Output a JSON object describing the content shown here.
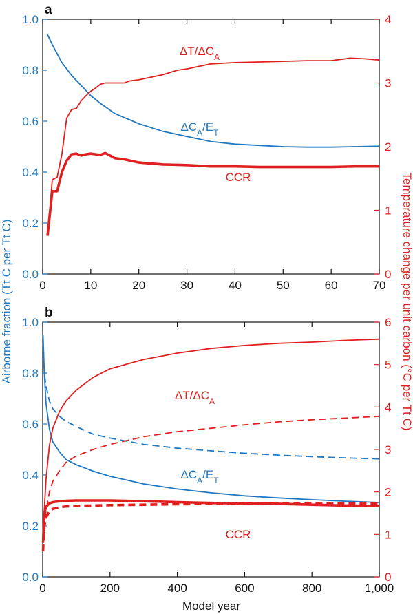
{
  "colors": {
    "blue": "#1f78c1",
    "red": "#e02020",
    "axis": "#111111"
  },
  "y_left_label": "Airborne fraction (Tt C per Tt C)",
  "y_right_label": "Temperature change per unit carbon (°C per Tt C)",
  "x_label": "Model year",
  "chart_data": [
    {
      "panel": "a",
      "type": "line",
      "xlim": [
        0,
        70
      ],
      "x_ticks": [
        "0",
        "10",
        "20",
        "30",
        "40",
        "50",
        "60",
        "70"
      ],
      "ylim_left": [
        0,
        1
      ],
      "y_left_ticks": [
        "0.0",
        "0.2",
        "0.4",
        "0.6",
        "0.8",
        "1.0"
      ],
      "ylim_right": [
        0,
        4
      ],
      "y_right_ticks": [
        "0",
        "1",
        "2",
        "3",
        "4"
      ],
      "labels": [
        {
          "series": "dT_dCA",
          "pre": "ΔT/ΔC",
          "sub": "A",
          "post": "",
          "color": "red"
        },
        {
          "series": "dCA_ET",
          "pre": "ΔC",
          "sub": "A",
          "post": "/E",
          "sub2": "T",
          "color": "blue"
        },
        {
          "series": "CCR",
          "pre": "CCR",
          "color": "red"
        }
      ],
      "series": [
        {
          "id": "dCA_ET",
          "axis": "left",
          "color": "blue",
          "style": "solid",
          "width": "thin",
          "x": [
            1,
            2,
            4,
            6,
            8,
            10,
            12,
            15,
            20,
            25,
            30,
            35,
            40,
            45,
            50,
            55,
            60,
            65,
            70
          ],
          "y": [
            0.94,
            0.9,
            0.83,
            0.78,
            0.74,
            0.7,
            0.67,
            0.63,
            0.59,
            0.56,
            0.54,
            0.52,
            0.51,
            0.505,
            0.5,
            0.498,
            0.498,
            0.5,
            0.502
          ]
        },
        {
          "id": "dT_dCA",
          "axis": "right",
          "color": "red",
          "style": "solid",
          "width": "thin",
          "x": [
            1,
            2,
            3,
            4,
            5,
            6,
            7,
            8,
            9,
            10,
            11,
            12,
            13,
            15,
            17,
            18,
            20,
            25,
            28,
            30,
            35,
            40,
            45,
            50,
            55,
            60,
            64,
            67,
            70
          ],
          "y": [
            0.6,
            1.48,
            1.52,
            1.88,
            2.45,
            2.58,
            2.6,
            2.72,
            2.8,
            2.87,
            2.92,
            2.98,
            3.0,
            3.0,
            3.0,
            3.03,
            3.05,
            3.13,
            3.2,
            3.22,
            3.3,
            3.32,
            3.33,
            3.34,
            3.35,
            3.35,
            3.39,
            3.38,
            3.36
          ]
        },
        {
          "id": "CCR",
          "axis": "right",
          "color": "red",
          "style": "solid",
          "width": "thick",
          "x": [
            1,
            2,
            3,
            4,
            5,
            6,
            7,
            8,
            9,
            10,
            11,
            12,
            13,
            14,
            15,
            17,
            20,
            25,
            30,
            35,
            40,
            45,
            50,
            55,
            60,
            65,
            70
          ],
          "y": [
            0.6,
            1.3,
            1.3,
            1.6,
            1.78,
            1.88,
            1.89,
            1.86,
            1.88,
            1.89,
            1.88,
            1.87,
            1.9,
            1.86,
            1.82,
            1.8,
            1.75,
            1.72,
            1.71,
            1.69,
            1.69,
            1.68,
            1.68,
            1.68,
            1.68,
            1.69,
            1.69
          ]
        }
      ]
    },
    {
      "panel": "b",
      "type": "line",
      "xlim": [
        0,
        1000
      ],
      "x_ticks": [
        "0",
        "200",
        "400",
        "600",
        "800",
        "1,000"
      ],
      "ylim_left": [
        0,
        1
      ],
      "y_left_ticks": [
        "0.0",
        "0.2",
        "0.4",
        "0.6",
        "0.8",
        "1.0"
      ],
      "ylim_right": [
        0,
        6
      ],
      "y_right_ticks": [
        "0",
        "1",
        "2",
        "3",
        "4",
        "5",
        "6"
      ],
      "labels": [
        {
          "series": "dT_dCA_solid",
          "pre": "ΔT/ΔC",
          "sub": "A",
          "post": "",
          "color": "red"
        },
        {
          "series": "dCA_ET_solid",
          "pre": "ΔC",
          "sub": "A",
          "post": "/E",
          "sub2": "T",
          "color": "blue"
        },
        {
          "series": "CCR_solid",
          "pre": "CCR",
          "color": "red"
        }
      ],
      "series": [
        {
          "id": "dCA_ET_solid",
          "axis": "left",
          "color": "blue",
          "style": "solid",
          "width": "thin",
          "x": [
            1,
            5,
            10,
            20,
            30,
            50,
            70,
            100,
            150,
            200,
            300,
            400,
            500,
            600,
            700,
            800,
            900,
            1000
          ],
          "y": [
            0.95,
            0.8,
            0.68,
            0.58,
            0.53,
            0.49,
            0.46,
            0.44,
            0.415,
            0.395,
            0.365,
            0.345,
            0.33,
            0.318,
            0.31,
            0.303,
            0.297,
            0.292
          ]
        },
        {
          "id": "dCA_ET_dashed",
          "axis": "left",
          "color": "blue",
          "style": "dashed",
          "width": "thin",
          "x": [
            1,
            5,
            10,
            20,
            30,
            50,
            70,
            100,
            150,
            200,
            300,
            400,
            500,
            600,
            700,
            800,
            900,
            1000
          ],
          "y": [
            0.92,
            0.8,
            0.75,
            0.69,
            0.66,
            0.63,
            0.61,
            0.59,
            0.56,
            0.545,
            0.52,
            0.505,
            0.495,
            0.485,
            0.478,
            0.472,
            0.467,
            0.463
          ]
        },
        {
          "id": "dT_dCA_solid",
          "axis": "right",
          "color": "red",
          "style": "solid",
          "width": "thin",
          "x": [
            1,
            5,
            10,
            20,
            30,
            50,
            70,
            100,
            150,
            200,
            300,
            400,
            500,
            600,
            700,
            800,
            900,
            1000
          ],
          "y": [
            0.8,
            1.6,
            2.3,
            3.1,
            3.5,
            3.9,
            4.15,
            4.4,
            4.7,
            4.9,
            5.12,
            5.27,
            5.38,
            5.45,
            5.5,
            5.53,
            5.57,
            5.6
          ]
        },
        {
          "id": "dT_dCA_dashed",
          "axis": "right",
          "color": "red",
          "style": "dashed",
          "width": "thin",
          "x": [
            1,
            5,
            10,
            20,
            30,
            50,
            70,
            100,
            150,
            200,
            300,
            400,
            500,
            600,
            700,
            800,
            900,
            1000
          ],
          "y": [
            0.6,
            1.2,
            1.55,
            2.0,
            2.25,
            2.5,
            2.7,
            2.85,
            3.0,
            3.12,
            3.3,
            3.42,
            3.5,
            3.58,
            3.65,
            3.7,
            3.74,
            3.78
          ]
        },
        {
          "id": "CCR_solid",
          "axis": "right",
          "color": "red",
          "style": "solid",
          "width": "thick",
          "x": [
            1,
            5,
            10,
            20,
            30,
            50,
            70,
            100,
            150,
            200,
            300,
            400,
            500,
            600,
            700,
            800,
            900,
            1000
          ],
          "y": [
            0.8,
            1.5,
            1.65,
            1.73,
            1.76,
            1.78,
            1.79,
            1.8,
            1.8,
            1.8,
            1.78,
            1.76,
            1.74,
            1.73,
            1.72,
            1.7,
            1.68,
            1.67
          ]
        },
        {
          "id": "CCR_dashed",
          "axis": "right",
          "color": "red",
          "style": "dashed",
          "width": "thick",
          "x": [
            1,
            5,
            10,
            20,
            30,
            50,
            70,
            100,
            150,
            200,
            300,
            400,
            500,
            600,
            700,
            800,
            900,
            1000
          ],
          "y": [
            0.6,
            1.2,
            1.4,
            1.55,
            1.6,
            1.64,
            1.66,
            1.67,
            1.68,
            1.69,
            1.7,
            1.71,
            1.72,
            1.72,
            1.73,
            1.73,
            1.73,
            1.73
          ]
        }
      ]
    }
  ]
}
